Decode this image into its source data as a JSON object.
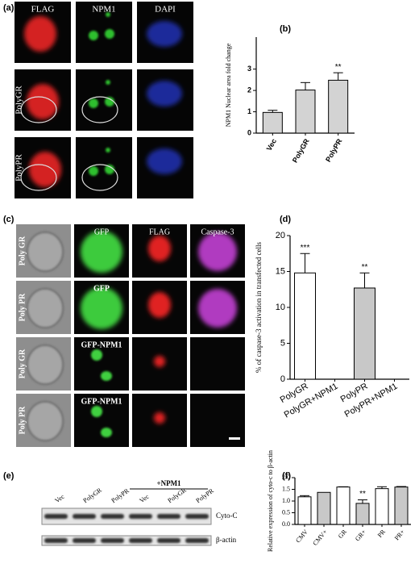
{
  "panels": [
    "(a)",
    "(b)",
    "(c)",
    "(d)",
    "(e)",
    "(f)"
  ],
  "panel_a": {
    "columns": [
      "FLAG",
      "NPM1",
      "DAPI"
    ],
    "rows": [
      "PolyGR",
      "PolyPR"
    ]
  },
  "panel_c": {
    "rows": [
      "Poly GR",
      "Poly PR",
      "Poly GR",
      "Poly PR"
    ],
    "columns": [
      "GFP",
      "FLAG",
      "Caspase-3"
    ],
    "row_labels": [
      "GFP",
      "GFP-NPM1",
      "GFP-NPM1"
    ]
  },
  "panel_e": {
    "lanes": [
      "Vec",
      "PolyGR",
      "PolyPR",
      "Vec",
      "PolyGR",
      "PolyPR"
    ],
    "group": "+NPM1",
    "bands": [
      "Cyto-C",
      "β-actin"
    ]
  },
  "chart_data": [
    {
      "type": "bar",
      "ylabel": "NPM1 Nuclear area fold change",
      "categories": [
        "Vec",
        "PolyGR",
        "PolyPR"
      ],
      "values": [
        0.97,
        2.02,
        2.48
      ],
      "errors": [
        0.1,
        0.35,
        0.35
      ],
      "colors": [
        "#d3d3d3",
        "#d3d3d3",
        "#d3d3d3"
      ],
      "ylim": [
        0,
        4.5
      ],
      "yticks": [
        0,
        1,
        2,
        3
      ],
      "annotations": [
        {
          "index": 2,
          "text": "**"
        }
      ]
    },
    {
      "type": "bar",
      "ylabel": "% of caspase-3 activation in transfected cells",
      "categories": [
        "PolyGR",
        "PolyGR+NPM1",
        "PolyPR",
        "PolyPR+NPM1"
      ],
      "values": [
        14.8,
        0,
        12.7,
        0
      ],
      "errors": [
        2.7,
        null,
        2.1,
        null
      ],
      "colors": [
        "#ffffff",
        "#ffffff",
        "#c8c8c8",
        "#c8c8c8"
      ],
      "ylim": [
        0,
        20
      ],
      "yticks": [
        0,
        5,
        10,
        15,
        20
      ],
      "annotations": [
        {
          "index": 0,
          "text": "***"
        },
        {
          "index": 2,
          "text": "**"
        }
      ]
    },
    {
      "type": "bar",
      "ylabel": "Relative expression of cyto-c to β-actin",
      "categories": [
        "CMV",
        "CMV+",
        "GR",
        "GR+",
        "PR",
        "PR+"
      ],
      "values": [
        1.18,
        1.37,
        1.6,
        0.9,
        1.53,
        1.6
      ],
      "errors": [
        0.05,
        null,
        0.01,
        0.15,
        0.08,
        0.02
      ],
      "colors": [
        "#ffffff",
        "#c8c8c8",
        "#ffffff",
        "#c8c8c8",
        "#ffffff",
        "#c8c8c8"
      ],
      "ylim": [
        0,
        2.0
      ],
      "yticks": [
        {
          "value": 0,
          "label": "0.0"
        },
        {
          "value": 0.5,
          "label": "0.5"
        },
        {
          "value": 1,
          "label": "1.0"
        },
        {
          "value": 1.5,
          "label": "1.5"
        },
        {
          "value": 2,
          "label": "2.0"
        }
      ],
      "annotations": [
        {
          "index": 3,
          "text": "**"
        }
      ]
    }
  ]
}
